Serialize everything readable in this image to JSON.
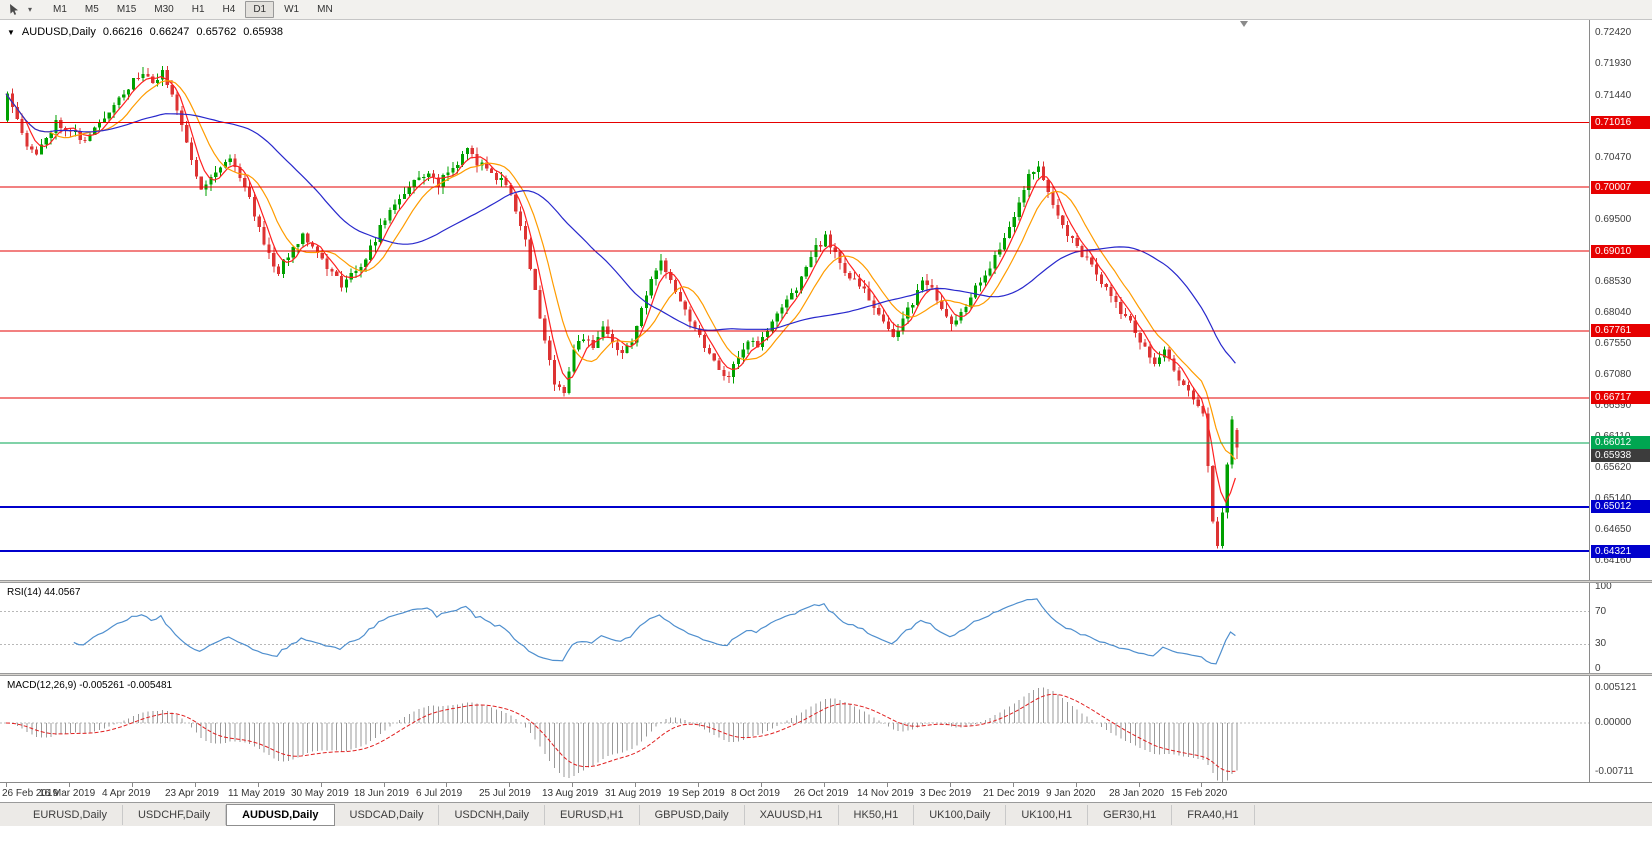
{
  "icons": {
    "collapse_arrow": "▼",
    "dropdown_caret": "▾"
  },
  "toolbar": {
    "timeframes": [
      "M1",
      "M5",
      "M15",
      "M30",
      "H1",
      "H4",
      "D1",
      "W1",
      "MN"
    ],
    "active_timeframe": "D1"
  },
  "chart_header": {
    "symbol": "AUDUSD,Daily",
    "open": "0.66216",
    "high": "0.66247",
    "low": "0.65762",
    "close": "0.65938"
  },
  "price_scale": {
    "ticks": [
      "0.72420",
      "0.71930",
      "0.71440",
      "0.70960",
      "0.70470",
      "0.69980",
      "0.69500",
      "0.69010",
      "0.68530",
      "0.68040",
      "0.67550",
      "0.67080",
      "0.66590",
      "0.66110",
      "0.65620",
      "0.65140",
      "0.64650",
      "0.64160"
    ],
    "current_price_badge": {
      "label": "0.65938",
      "color": "#3c3c3c"
    }
  },
  "date_axis": {
    "labels": [
      "26 Feb 2019",
      "16 Mar 2019",
      "4 Apr 2019",
      "23 Apr 2019",
      "11 May 2019",
      "30 May 2019",
      "18 Jun 2019",
      "6 Jul 2019",
      "25 Jul 2019",
      "13 Aug 2019",
      "31 Aug 2019",
      "19 Sep 2019",
      "8 Oct 2019",
      "26 Oct 2019",
      "14 Nov 2019",
      "3 Dec 2019",
      "21 Dec 2019",
      "9 Jan 2020",
      "28 Jan 2020",
      "15 Feb 2020"
    ]
  },
  "rsi": {
    "label": "RSI(14) 44.0567",
    "scale_labels": [
      100,
      70,
      30,
      0
    ],
    "guide_levels": [
      70,
      30
    ],
    "line_color": "#4f8fce"
  },
  "macd": {
    "label": "MACD(12,26,9) -0.005261 -0.005481",
    "scale_labels": [
      "0.005121",
      "0.00000",
      "-0.00711"
    ],
    "scale_values": [
      0.005121,
      0,
      -0.00711
    ],
    "histogram_color": "#9a9a9a",
    "signal_color": "#e02020"
  },
  "tabs": {
    "items": [
      {
        "label": "EURUSD,Daily",
        "active": false
      },
      {
        "label": "USDCHF,Daily",
        "active": false
      },
      {
        "label": "AUDUSD,Daily",
        "active": true
      },
      {
        "label": "USDCAD,Daily",
        "active": false
      },
      {
        "label": "USDCNH,Daily",
        "active": false
      },
      {
        "label": "EURUSD,H1",
        "active": false
      },
      {
        "label": "GBPUSD,Daily",
        "active": false
      },
      {
        "label": "XAUUSD,H1",
        "active": false
      },
      {
        "label": "HK50,H1",
        "active": false
      },
      {
        "label": "UK100,Daily",
        "active": false
      },
      {
        "label": "UK100,H1",
        "active": false
      },
      {
        "label": "GER30,H1",
        "active": false
      },
      {
        "label": "FRA40,H1",
        "active": false
      }
    ]
  },
  "chart_data": {
    "type": "candlestick",
    "symbol": "AUDUSD",
    "timeframe": "Daily",
    "title": "AUDUSD,Daily",
    "y_axis_range": [
      0.6416,
      0.7242
    ],
    "candle_count": 255,
    "label_every_n_candles": 13,
    "noise_seed": 11,
    "up_color": "#00a000",
    "down_color": "#dd3333",
    "last_candle": {
      "open": 0.66216,
      "high": 0.66247,
      "low": 0.65762,
      "close": 0.65938
    },
    "price_path_anchors": [
      [
        0,
        0.715
      ],
      [
        2,
        0.7112
      ],
      [
        4,
        0.7066
      ],
      [
        6,
        0.705
      ],
      [
        8,
        0.708
      ],
      [
        10,
        0.7102
      ],
      [
        13,
        0.7092
      ],
      [
        16,
        0.7072
      ],
      [
        19,
        0.71
      ],
      [
        22,
        0.7132
      ],
      [
        25,
        0.7158
      ],
      [
        28,
        0.718
      ],
      [
        30,
        0.7162
      ],
      [
        32,
        0.7178
      ],
      [
        34,
        0.715
      ],
      [
        36,
        0.7098
      ],
      [
        38,
        0.704
      ],
      [
        40,
        0.7002
      ],
      [
        43,
        0.7025
      ],
      [
        46,
        0.7048
      ],
      [
        48,
        0.7018
      ],
      [
        50,
        0.6982
      ],
      [
        52,
        0.6938
      ],
      [
        54,
        0.6895
      ],
      [
        56,
        0.6868
      ],
      [
        58,
        0.6895
      ],
      [
        61,
        0.6928
      ],
      [
        63,
        0.6912
      ],
      [
        66,
        0.6875
      ],
      [
        69,
        0.685
      ],
      [
        72,
        0.6868
      ],
      [
        75,
        0.6905
      ],
      [
        78,
        0.6952
      ],
      [
        81,
        0.6985
      ],
      [
        84,
        0.7008
      ],
      [
        87,
        0.7025
      ],
      [
        89,
        0.7005
      ],
      [
        92,
        0.7032
      ],
      [
        95,
        0.7058
      ],
      [
        97,
        0.704
      ],
      [
        100,
        0.7022
      ],
      [
        103,
        0.7005
      ],
      [
        105,
        0.6968
      ],
      [
        107,
        0.6915
      ],
      [
        109,
        0.6838
      ],
      [
        111,
        0.6755
      ],
      [
        113,
        0.6698
      ],
      [
        115,
        0.6682
      ],
      [
        117,
        0.6748
      ],
      [
        119,
        0.6768
      ],
      [
        121,
        0.6745
      ],
      [
        123,
        0.6782
      ],
      [
        125,
        0.676
      ],
      [
        127,
        0.6738
      ],
      [
        129,
        0.6762
      ],
      [
        131,
        0.6808
      ],
      [
        133,
        0.6852
      ],
      [
        135,
        0.6882
      ],
      [
        137,
        0.6858
      ],
      [
        139,
        0.6828
      ],
      [
        141,
        0.6795
      ],
      [
        143,
        0.6768
      ],
      [
        145,
        0.6742
      ],
      [
        147,
        0.6718
      ],
      [
        149,
        0.6705
      ],
      [
        151,
        0.6738
      ],
      [
        153,
        0.6762
      ],
      [
        155,
        0.6752
      ],
      [
        157,
        0.6775
      ],
      [
        159,
        0.6802
      ],
      [
        161,
        0.6822
      ],
      [
        163,
        0.6845
      ],
      [
        165,
        0.6878
      ],
      [
        167,
        0.6905
      ],
      [
        169,
        0.6922
      ],
      [
        171,
        0.6898
      ],
      [
        173,
        0.6872
      ],
      [
        175,
        0.6852
      ],
      [
        177,
        0.6838
      ],
      [
        179,
        0.6812
      ],
      [
        181,
        0.6788
      ],
      [
        183,
        0.6772
      ],
      [
        185,
        0.6792
      ],
      [
        187,
        0.6822
      ],
      [
        189,
        0.6855
      ],
      [
        191,
        0.6838
      ],
      [
        193,
        0.6808
      ],
      [
        195,
        0.6782
      ],
      [
        197,
        0.6802
      ],
      [
        199,
        0.6832
      ],
      [
        201,
        0.6855
      ],
      [
        203,
        0.6878
      ],
      [
        205,
        0.6905
      ],
      [
        207,
        0.6938
      ],
      [
        209,
        0.6982
      ],
      [
        211,
        0.7018
      ],
      [
        213,
        0.7028
      ],
      [
        215,
        0.6992
      ],
      [
        217,
        0.6958
      ],
      [
        219,
        0.693
      ],
      [
        221,
        0.6905
      ],
      [
        223,
        0.6888
      ],
      [
        225,
        0.6862
      ],
      [
        227,
        0.684
      ],
      [
        229,
        0.6818
      ],
      [
        231,
        0.6798
      ],
      [
        233,
        0.6775
      ],
      [
        235,
        0.6752
      ],
      [
        237,
        0.6728
      ],
      [
        239,
        0.6742
      ],
      [
        241,
        0.6715
      ],
      [
        243,
        0.6688
      ],
      [
        245,
        0.6668
      ],
      [
        247,
        0.6648
      ],
      [
        248,
        0.6565
      ],
      [
        249,
        0.6478
      ],
      [
        250,
        0.6442
      ],
      [
        251,
        0.6495
      ],
      [
        252,
        0.6568
      ],
      [
        253,
        0.6635
      ],
      [
        254,
        0.65938
      ]
    ],
    "moving_averages": [
      {
        "period": 5,
        "color": "#ff2020"
      },
      {
        "period": 10,
        "color": "#ff9c00"
      },
      {
        "period": 34,
        "color": "#2828cc"
      }
    ],
    "horizontal_lines": [
      {
        "price": 0.71016,
        "label": "0.71016",
        "color": "#e60000",
        "width": 1
      },
      {
        "price": 0.70007,
        "label": "0.70007",
        "color": "#e60000",
        "width": 1
      },
      {
        "price": 0.6901,
        "label": "0.69010",
        "color": "#e60000",
        "width": 1
      },
      {
        "price": 0.67761,
        "label": "0.67761",
        "color": "#e60000",
        "width": 1
      },
      {
        "price": 0.66717,
        "label": "0.66717",
        "color": "#e60000",
        "width": 1
      },
      {
        "price": 0.66012,
        "label": "0.66012",
        "color": "#00a651",
        "width": 1
      },
      {
        "price": 0.65012,
        "label": "0.65012",
        "color": "#0000cc",
        "width": 2
      },
      {
        "price": 0.64321,
        "label": "0.64321",
        "color": "#0000cc",
        "width": 2
      }
    ],
    "indicators": [
      {
        "name": "RSI",
        "params": "14",
        "current": "44.0567"
      },
      {
        "name": "MACD",
        "params": "12,26,9",
        "current": [
          "-0.005261",
          "-0.005481"
        ]
      }
    ]
  }
}
